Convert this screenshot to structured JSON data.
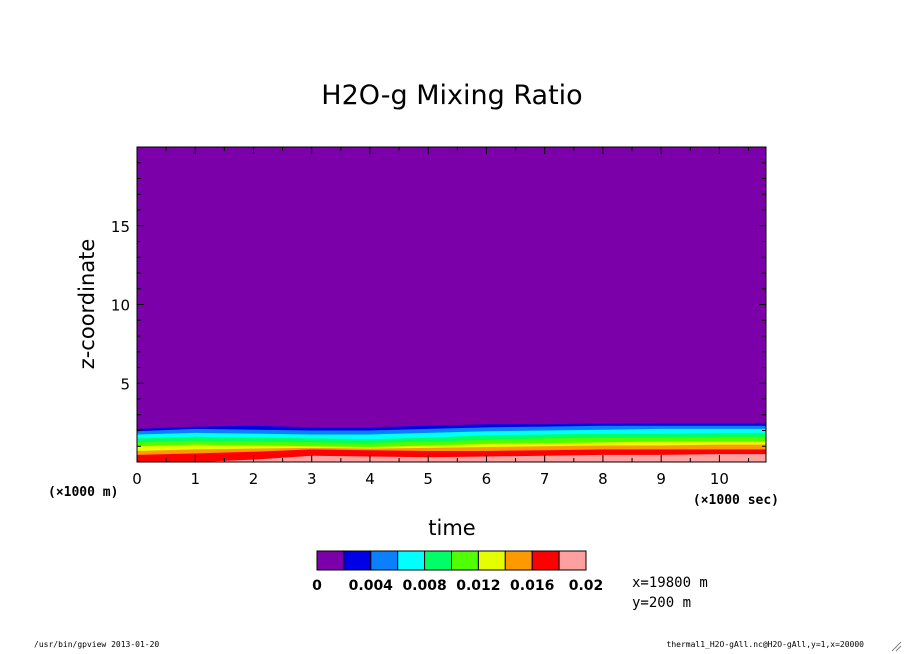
{
  "chart_data": {
    "type": "heatmap",
    "title": "H2O-g Mixing Ratio",
    "xlabel": "time",
    "ylabel": "z-coordinate",
    "x_unit": "(×1000 sec)",
    "y_unit": "(×1000 m)",
    "xlim": [
      0,
      10.8
    ],
    "ylim": [
      0,
      20
    ],
    "x_ticks": [
      0,
      1,
      2,
      3,
      4,
      5,
      6,
      7,
      8,
      9,
      10
    ],
    "y_ticks": [
      5,
      10,
      15
    ],
    "levels": [
      0,
      0.002,
      0.004,
      0.006,
      0.008,
      0.01,
      0.012,
      0.014,
      0.016,
      0.018,
      0.02
    ],
    "level_colors": [
      "#7b00aa",
      "#0000e6",
      "#0a80ff",
      "#00ffff",
      "#00ff66",
      "#50ff00",
      "#e6ff00",
      "#ff9900",
      "#ff0000",
      "#ffa0a0"
    ],
    "colorbar_labels": [
      "0",
      "0.004",
      "0.008",
      "0.012",
      "0.016",
      "0.02"
    ],
    "contour_boundaries_z": {
      "x": [
        0,
        1,
        2,
        3,
        4,
        5,
        6,
        7,
        8,
        9,
        10,
        10.8
      ],
      "bands": [
        [
          2.1,
          2.25,
          2.3,
          2.2,
          2.2,
          2.3,
          2.4,
          2.4,
          2.45,
          2.45,
          2.45,
          2.45
        ],
        [
          1.95,
          2.1,
          2.05,
          2.0,
          2.0,
          2.1,
          2.2,
          2.25,
          2.3,
          2.3,
          2.3,
          2.3
        ],
        [
          1.75,
          1.85,
          1.8,
          1.75,
          1.75,
          1.85,
          1.95,
          2.0,
          2.05,
          2.1,
          2.1,
          2.1
        ],
        [
          1.5,
          1.6,
          1.55,
          1.5,
          1.45,
          1.55,
          1.7,
          1.75,
          1.8,
          1.8,
          1.85,
          1.85
        ],
        [
          1.25,
          1.35,
          1.3,
          1.25,
          1.2,
          1.3,
          1.4,
          1.5,
          1.55,
          1.55,
          1.6,
          1.6
        ],
        [
          1.0,
          1.1,
          1.05,
          1.0,
          0.95,
          1.05,
          1.15,
          1.2,
          1.25,
          1.3,
          1.3,
          1.3
        ],
        [
          0.7,
          0.8,
          0.85,
          0.9,
          0.85,
          0.9,
          0.95,
          1.0,
          1.05,
          1.05,
          1.1,
          1.1
        ],
        [
          0.45,
          0.55,
          0.65,
          0.8,
          0.75,
          0.7,
          0.7,
          0.75,
          0.8,
          0.8,
          0.8,
          0.8
        ],
        [
          0.0,
          0.0,
          0.15,
          0.4,
          0.35,
          0.3,
          0.35,
          0.4,
          0.45,
          0.45,
          0.5,
          0.5
        ]
      ]
    },
    "annotations": [
      "x=19800 m",
      "y=200 m"
    ]
  },
  "footer": {
    "left": "/usr/bin/gpview  2013-01-20",
    "right": "thermal1_H2O-gAll.nc@H2O-gAll,y=1,x=20000"
  }
}
